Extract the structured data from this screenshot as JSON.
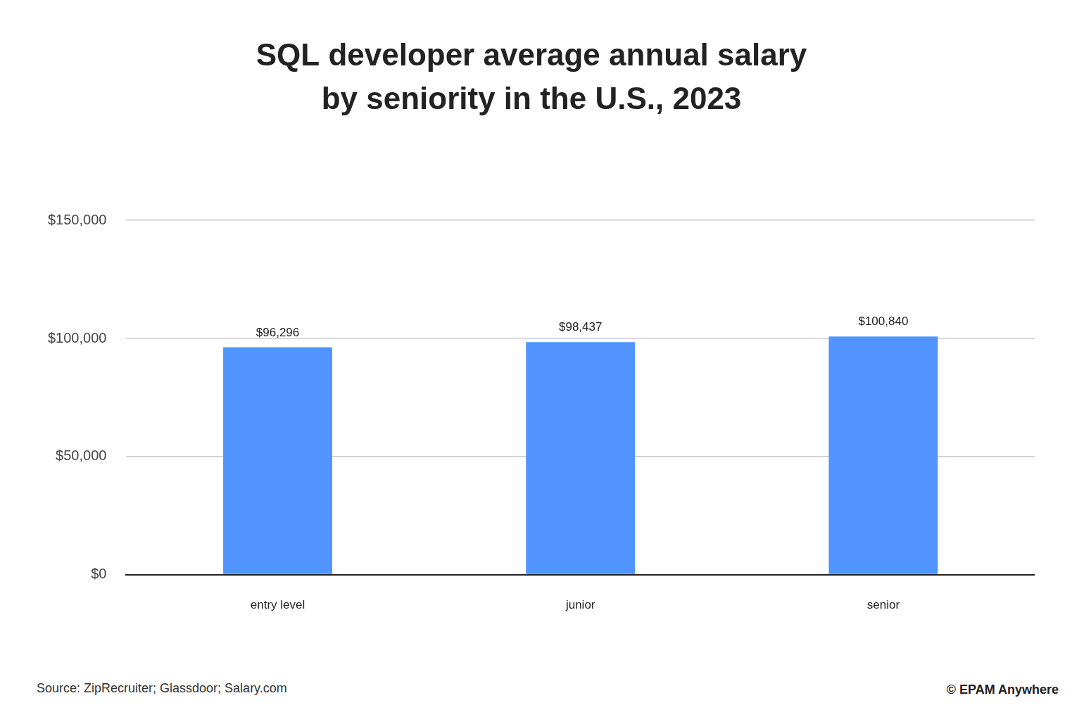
{
  "chart_data": {
    "type": "bar",
    "title": [
      "SQL developer average annual salary",
      "by seniority in the U.S., 2023"
    ],
    "categories": [
      "entry level",
      "junior",
      "senior"
    ],
    "values": [
      96296,
      98437,
      100840
    ],
    "value_labels": [
      "$96,296",
      "$98,437",
      "$100,840"
    ],
    "data_labels": true,
    "color": "#5294ff",
    "ylim": [
      0,
      150000
    ],
    "yticks": [
      {
        "value": 0,
        "label": "$0"
      },
      {
        "value": 50000,
        "label": "$50,000"
      },
      {
        "value": 100000,
        "label": "$100,000"
      },
      {
        "value": 150000,
        "label": "$150,000"
      }
    ],
    "grid": true,
    "annotations": [
      "Source: ZipRecruiter; Glassdoor; Salary.com",
      "© EPAM Anywhere"
    ]
  }
}
